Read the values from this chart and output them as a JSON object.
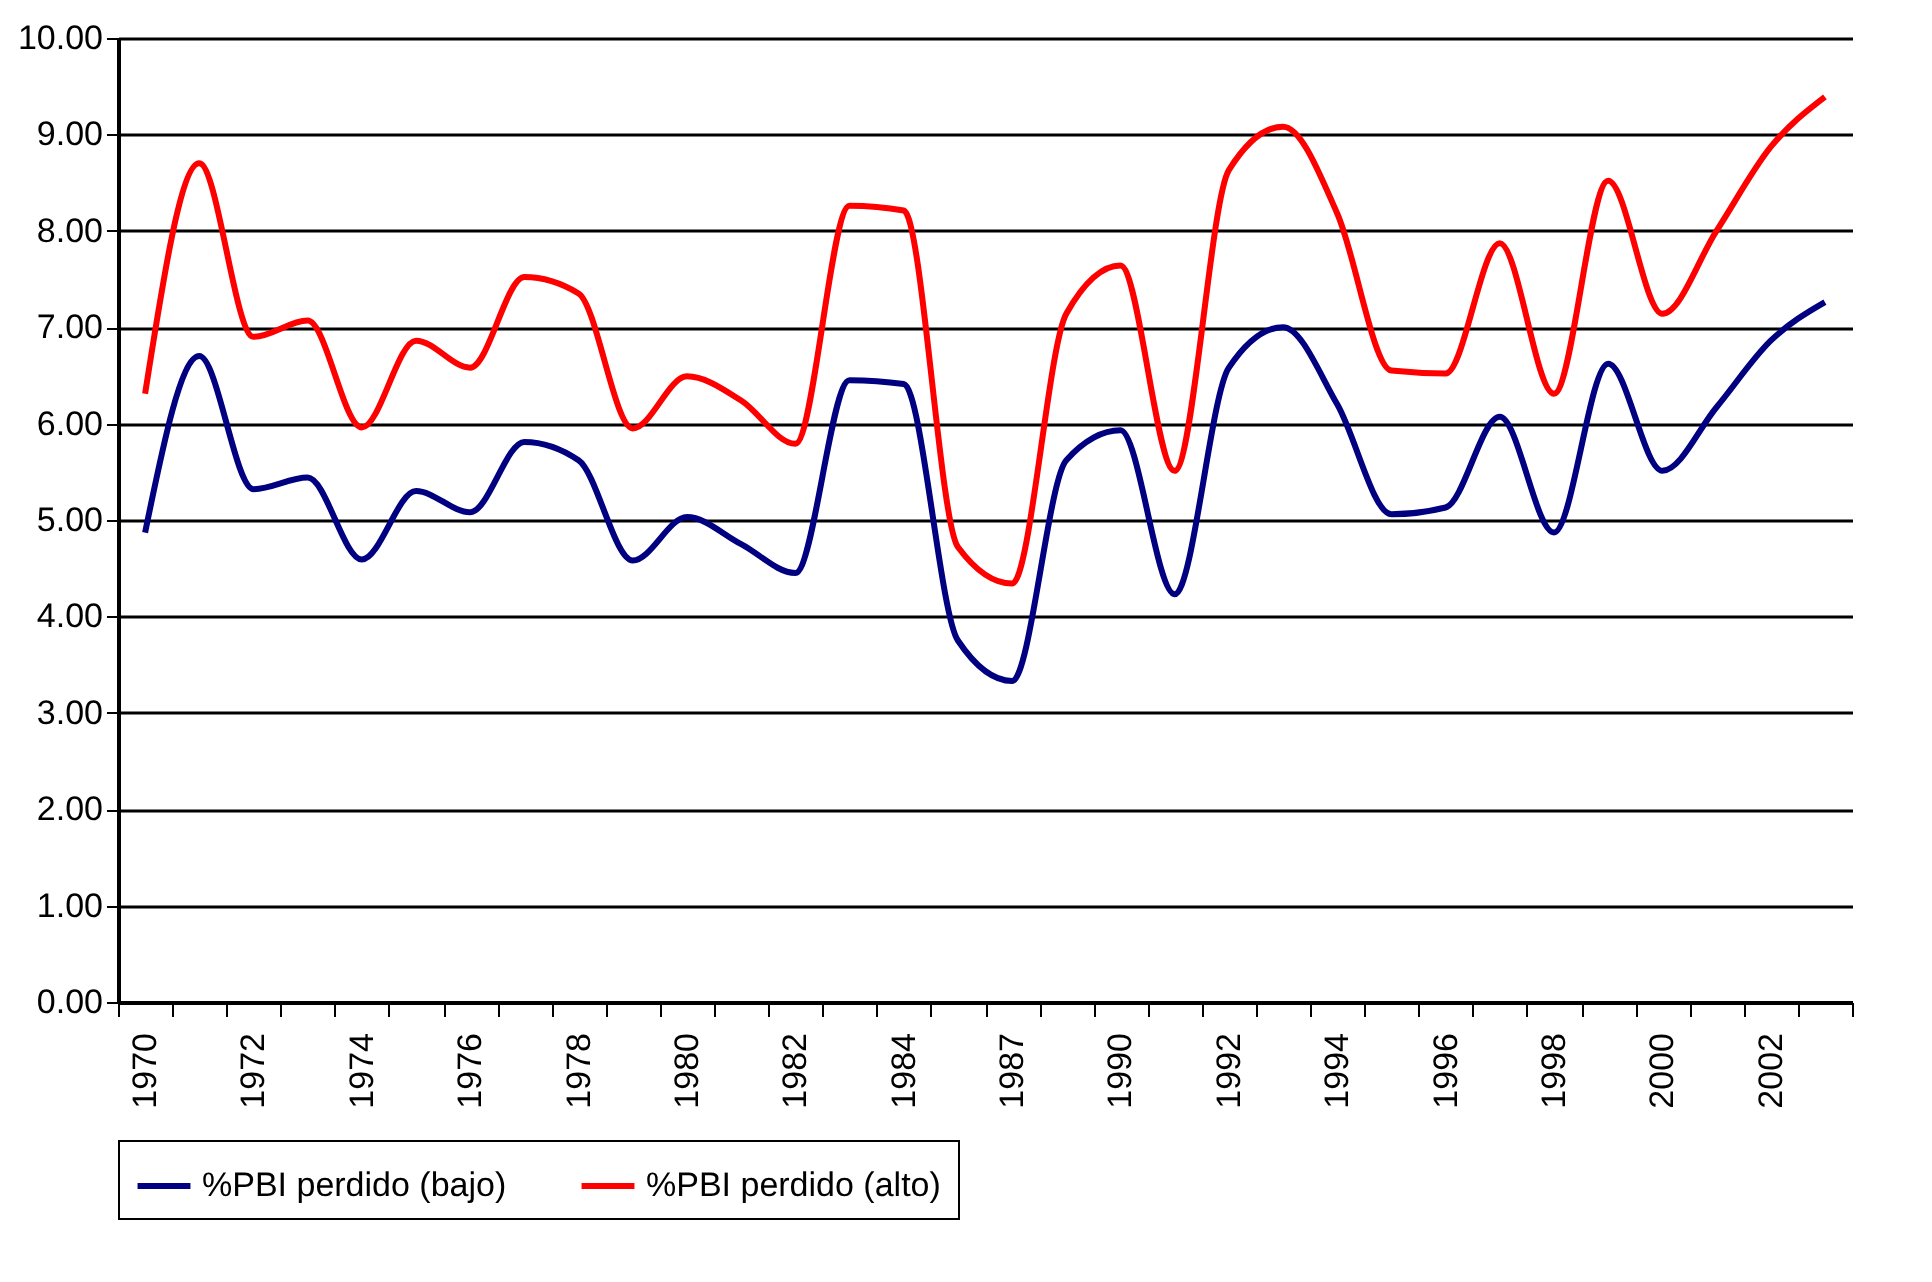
{
  "chart_data": {
    "type": "line",
    "categories": [
      "1970",
      null,
      "1972",
      null,
      "1974",
      null,
      "1976",
      null,
      "1978",
      null,
      "1980",
      null,
      "1982",
      null,
      "1984",
      null,
      "1987",
      null,
      "1990",
      null,
      "1992",
      null,
      "1994",
      null,
      "1996",
      null,
      "1998",
      null,
      "2000",
      null,
      "2002",
      null
    ],
    "series": [
      {
        "name": "%PBI perdido (bajo)",
        "color": "#000080",
        "values": [
          4.87,
          6.7,
          5.32,
          5.44,
          4.59,
          5.3,
          5.08,
          5.81,
          5.62,
          4.58,
          5.03,
          4.75,
          4.45,
          6.45,
          6.41,
          3.75,
          3.33,
          5.62,
          5.93,
          4.23,
          6.58,
          7.0,
          6.2,
          5.06,
          5.13,
          6.07,
          4.87,
          6.62,
          5.51,
          6.17,
          6.86,
          7.26
        ]
      },
      {
        "name": "%PBI perdido (alto)",
        "color": "#ff0000",
        "values": [
          6.31,
          8.7,
          6.9,
          7.07,
          5.96,
          6.86,
          6.58,
          7.52,
          7.35,
          5.95,
          6.49,
          6.24,
          5.79,
          8.26,
          8.21,
          4.72,
          4.34,
          7.14,
          7.64,
          5.51,
          8.63,
          9.08,
          8.18,
          6.55,
          6.52,
          7.87,
          6.31,
          8.52,
          7.14,
          8.0,
          8.87,
          9.39
        ]
      }
    ],
    "ylim": [
      0,
      10
    ],
    "yticks": [
      {
        "value": 0,
        "label": "0.00"
      },
      {
        "value": 1,
        "label": "1.00"
      },
      {
        "value": 2,
        "label": "2.00"
      },
      {
        "value": 3,
        "label": "3.00"
      },
      {
        "value": 4,
        "label": "4.00"
      },
      {
        "value": 5,
        "label": "5.00"
      },
      {
        "value": 6,
        "label": "6.00"
      },
      {
        "value": 7,
        "label": "7.00"
      },
      {
        "value": 8,
        "label": "8.00"
      },
      {
        "value": 9,
        "label": "9.00"
      },
      {
        "value": 10,
        "label": "10.00"
      }
    ],
    "grid": "y",
    "legend": "bottom",
    "marker": "none",
    "line_style": "solid"
  }
}
